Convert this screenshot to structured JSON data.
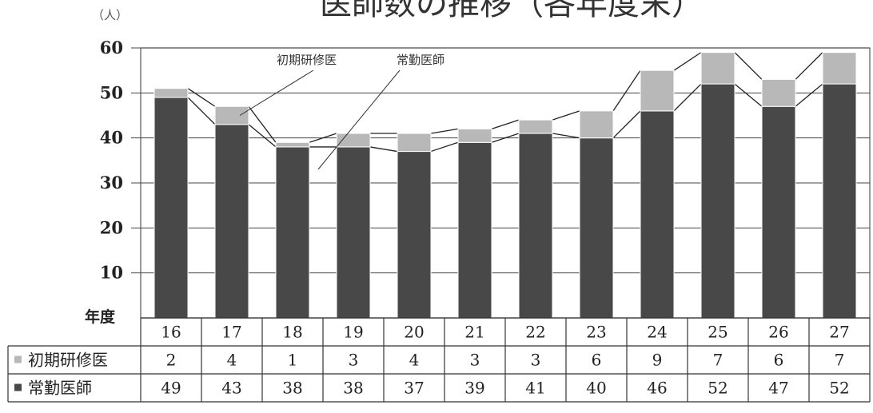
{
  "chart_data": {
    "type": "bar",
    "stacked": true,
    "title": "医師数の推移（各年度末）",
    "unit_label": "（人）",
    "year_header": "年度",
    "categories": [
      "16",
      "17",
      "18",
      "19",
      "20",
      "21",
      "22",
      "23",
      "24",
      "25",
      "26",
      "27"
    ],
    "series": [
      {
        "name": "常勤医師",
        "color": "#484848",
        "values": [
          49,
          43,
          38,
          38,
          37,
          39,
          41,
          40,
          46,
          52,
          47,
          52
        ]
      },
      {
        "name": "初期研修医",
        "color": "#b8b8b8",
        "values": [
          2,
          4,
          1,
          3,
          4,
          3,
          3,
          6,
          9,
          7,
          6,
          7
        ]
      }
    ],
    "ylim": [
      0,
      60
    ],
    "yticks": [
      10,
      20,
      30,
      40,
      50,
      60
    ],
    "grid": true,
    "annotations": [
      "初期研修医",
      "常勤医師"
    ]
  }
}
